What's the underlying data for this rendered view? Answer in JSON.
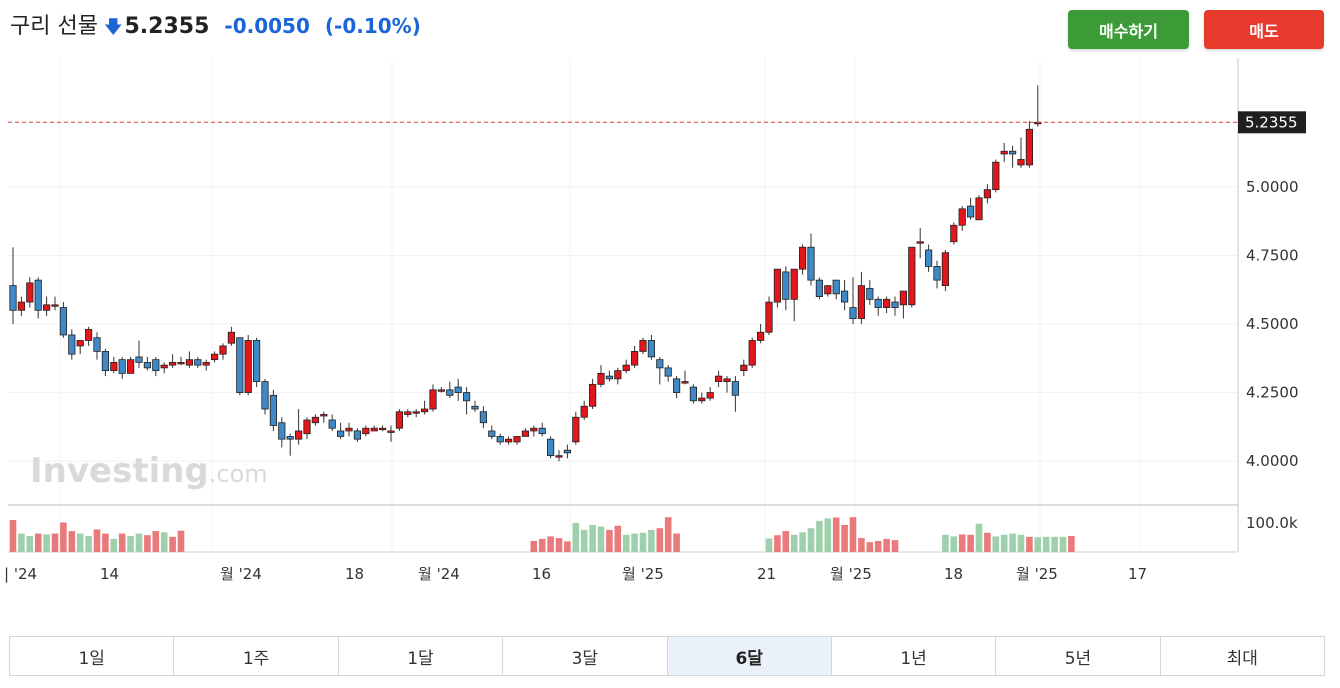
{
  "header": {
    "name": "구리 선물",
    "arrow": "🡇",
    "price": "5.2355",
    "change": "-0.0050",
    "change_pct": "(-0.10%)"
  },
  "actions": {
    "buy_label": "매수하기",
    "sell_label": "매도"
  },
  "chart_data": {
    "type": "candlestick",
    "last_price_label": "5.2355",
    "y_ticks": [
      "4.0000",
      "4.2500",
      "4.5000",
      "4.7500",
      "5.0000"
    ],
    "ylim": [
      3.84,
      5.47
    ],
    "volume_label": "100.0k",
    "x_tick_labels": [
      "| '24",
      "14",
      "월 '24",
      "18",
      "월 '24",
      "16",
      "월 '25",
      "21",
      "월 '25",
      "18",
      "월 '25",
      "17"
    ],
    "watermark": "Investing",
    "watermark_suffix": ".com",
    "colors": {
      "up": "#e3161c",
      "down": "#3f89c6",
      "vol_up": "#e87a7c",
      "vol_down": "#9fd0ac",
      "last_line": "#d83b3b"
    },
    "candles": [
      [
        4.64,
        4.78,
        4.5,
        4.55
      ],
      [
        4.55,
        4.6,
        4.53,
        4.58
      ],
      [
        4.58,
        4.67,
        4.56,
        4.65
      ],
      [
        4.66,
        4.67,
        4.52,
        4.55
      ],
      [
        4.55,
        4.6,
        4.53,
        4.57
      ],
      [
        4.57,
        4.6,
        4.55,
        4.57
      ],
      [
        4.56,
        4.58,
        4.45,
        4.46
      ],
      [
        4.46,
        4.48,
        4.37,
        4.39
      ],
      [
        4.42,
        4.44,
        4.39,
        4.44
      ],
      [
        4.44,
        4.49,
        4.42,
        4.48
      ],
      [
        4.45,
        4.47,
        4.37,
        4.4
      ],
      [
        4.4,
        4.41,
        4.31,
        4.33
      ],
      [
        4.33,
        4.38,
        4.32,
        4.36
      ],
      [
        4.37,
        4.38,
        4.3,
        4.32
      ],
      [
        4.32,
        4.38,
        4.32,
        4.37
      ],
      [
        4.38,
        4.44,
        4.34,
        4.36
      ],
      [
        4.36,
        4.38,
        4.33,
        4.34
      ],
      [
        4.37,
        4.38,
        4.31,
        4.33
      ],
      [
        4.34,
        4.36,
        4.32,
        4.35
      ],
      [
        4.35,
        4.39,
        4.34,
        4.36
      ],
      [
        4.36,
        4.38,
        4.35,
        4.36
      ],
      [
        4.35,
        4.4,
        4.34,
        4.37
      ],
      [
        4.37,
        4.38,
        4.34,
        4.35
      ],
      [
        4.35,
        4.37,
        4.33,
        4.36
      ],
      [
        4.37,
        4.4,
        4.36,
        4.39
      ],
      [
        4.39,
        4.43,
        4.37,
        4.42
      ],
      [
        4.43,
        4.49,
        4.42,
        4.47
      ],
      [
        4.45,
        4.45,
        4.24,
        4.25
      ],
      [
        4.25,
        4.46,
        4.24,
        4.44
      ],
      [
        4.44,
        4.45,
        4.27,
        4.29
      ],
      [
        4.29,
        4.3,
        4.17,
        4.19
      ],
      [
        4.24,
        4.26,
        4.11,
        4.13
      ],
      [
        4.14,
        4.16,
        4.05,
        4.08
      ],
      [
        4.09,
        4.1,
        4.02,
        4.08
      ],
      [
        4.08,
        4.19,
        4.06,
        4.11
      ],
      [
        4.1,
        4.16,
        4.08,
        4.15
      ],
      [
        4.14,
        4.17,
        4.13,
        4.16
      ],
      [
        4.17,
        4.18,
        4.14,
        4.17
      ],
      [
        4.15,
        4.17,
        4.11,
        4.12
      ],
      [
        4.11,
        4.14,
        4.08,
        4.09
      ],
      [
        4.11,
        4.14,
        4.09,
        4.12
      ],
      [
        4.11,
        4.12,
        4.07,
        4.08
      ],
      [
        4.1,
        4.13,
        4.09,
        4.12
      ],
      [
        4.11,
        4.13,
        4.11,
        4.12
      ],
      [
        4.12,
        4.13,
        4.11,
        4.12
      ],
      [
        4.11,
        4.13,
        4.07,
        4.11
      ],
      [
        4.12,
        4.19,
        4.11,
        4.18
      ],
      [
        4.17,
        4.19,
        4.16,
        4.18
      ],
      [
        4.18,
        4.19,
        4.16,
        4.18
      ],
      [
        4.18,
        4.22,
        4.17,
        4.19
      ],
      [
        4.19,
        4.28,
        4.18,
        4.26
      ],
      [
        4.26,
        4.27,
        4.25,
        4.26
      ],
      [
        4.26,
        4.29,
        4.23,
        4.24
      ],
      [
        4.27,
        4.3,
        4.22,
        4.25
      ],
      [
        4.25,
        4.27,
        4.17,
        4.22
      ],
      [
        4.2,
        4.22,
        4.18,
        4.19
      ],
      [
        4.18,
        4.2,
        4.12,
        4.14
      ],
      [
        4.11,
        4.13,
        4.08,
        4.09
      ],
      [
        4.09,
        4.1,
        4.06,
        4.07
      ],
      [
        4.07,
        4.09,
        4.06,
        4.08
      ],
      [
        4.07,
        4.09,
        4.06,
        4.09
      ],
      [
        4.09,
        4.12,
        4.09,
        4.11
      ],
      [
        4.11,
        4.13,
        4.09,
        4.12
      ],
      [
        4.12,
        4.14,
        4.09,
        4.1
      ],
      [
        4.08,
        4.09,
        4.01,
        4.02
      ],
      [
        4.02,
        4.04,
        4.0,
        4.02
      ],
      [
        4.04,
        4.06,
        4.01,
        4.03
      ],
      [
        4.07,
        4.18,
        4.06,
        4.16
      ],
      [
        4.16,
        4.22,
        4.15,
        4.2
      ],
      [
        4.2,
        4.3,
        4.19,
        4.28
      ],
      [
        4.28,
        4.35,
        4.27,
        4.32
      ],
      [
        4.31,
        4.33,
        4.29,
        4.3
      ],
      [
        4.3,
        4.34,
        4.28,
        4.33
      ],
      [
        4.33,
        4.37,
        4.32,
        4.35
      ],
      [
        4.35,
        4.42,
        4.34,
        4.4
      ],
      [
        4.4,
        4.45,
        4.39,
        4.44
      ],
      [
        4.44,
        4.46,
        4.37,
        4.38
      ],
      [
        4.37,
        4.38,
        4.28,
        4.34
      ],
      [
        4.34,
        4.35,
        4.29,
        4.31
      ],
      [
        4.3,
        4.31,
        4.23,
        4.25
      ],
      [
        4.29,
        4.33,
        4.28,
        4.29
      ],
      [
        4.27,
        4.28,
        4.21,
        4.22
      ],
      [
        4.22,
        4.25,
        4.21,
        4.23
      ],
      [
        4.23,
        4.27,
        4.22,
        4.25
      ],
      [
        4.29,
        4.33,
        4.27,
        4.31
      ],
      [
        4.29,
        4.31,
        4.25,
        4.3
      ],
      [
        4.29,
        4.31,
        4.18,
        4.24
      ],
      [
        4.33,
        4.37,
        4.31,
        4.35
      ],
      [
        4.35,
        4.45,
        4.34,
        4.44
      ],
      [
        4.44,
        4.5,
        4.43,
        4.47
      ],
      [
        4.47,
        4.6,
        4.46,
        4.58
      ],
      [
        4.58,
        4.7,
        4.56,
        4.7
      ],
      [
        4.69,
        4.71,
        4.55,
        4.59
      ],
      [
        4.59,
        4.7,
        4.51,
        4.7
      ],
      [
        4.7,
        4.79,
        4.68,
        4.78
      ],
      [
        4.78,
        4.83,
        4.64,
        4.66
      ],
      [
        4.66,
        4.67,
        4.59,
        4.6
      ],
      [
        4.61,
        4.64,
        4.6,
        4.64
      ],
      [
        4.66,
        4.66,
        4.59,
        4.61
      ],
      [
        4.62,
        4.66,
        4.55,
        4.58
      ],
      [
        4.56,
        4.67,
        4.5,
        4.52
      ],
      [
        4.52,
        4.69,
        4.5,
        4.64
      ],
      [
        4.63,
        4.66,
        4.57,
        4.59
      ],
      [
        4.59,
        4.6,
        4.53,
        4.56
      ],
      [
        4.56,
        4.6,
        4.54,
        4.59
      ],
      [
        4.58,
        4.6,
        4.53,
        4.56
      ],
      [
        4.57,
        4.62,
        4.52,
        4.62
      ],
      [
        4.57,
        4.78,
        4.56,
        4.78
      ],
      [
        4.8,
        4.85,
        4.74,
        4.8
      ],
      [
        4.77,
        4.79,
        4.69,
        4.71
      ],
      [
        4.71,
        4.73,
        4.63,
        4.66
      ],
      [
        4.64,
        4.77,
        4.62,
        4.76
      ],
      [
        4.8,
        4.87,
        4.79,
        4.86
      ],
      [
        4.86,
        4.93,
        4.84,
        4.92
      ],
      [
        4.93,
        4.96,
        4.88,
        4.89
      ],
      [
        4.88,
        4.97,
        4.88,
        4.96
      ],
      [
        4.96,
        5.01,
        4.94,
        4.99
      ],
      [
        4.99,
        5.1,
        4.98,
        5.09
      ],
      [
        5.12,
        5.16,
        5.09,
        5.13
      ],
      [
        5.13,
        5.15,
        5.07,
        5.12
      ],
      [
        5.08,
        5.18,
        5.07,
        5.1
      ],
      [
        5.08,
        5.24,
        5.07,
        5.21
      ],
      [
        5.2355,
        5.37,
        5.22,
        5.2355
      ]
    ],
    "volume": [
      [
        0.78,
        1
      ],
      [
        0.45,
        0
      ],
      [
        0.39,
        0
      ],
      [
        0.45,
        1
      ],
      [
        0.43,
        0
      ],
      [
        0.45,
        1
      ],
      [
        0.72,
        1
      ],
      [
        0.51,
        1
      ],
      [
        0.45,
        0
      ],
      [
        0.39,
        0
      ],
      [
        0.55,
        1
      ],
      [
        0.45,
        1
      ],
      [
        0.32,
        0
      ],
      [
        0.45,
        1
      ],
      [
        0.39,
        0
      ],
      [
        0.45,
        0
      ],
      [
        0.41,
        1
      ],
      [
        0.51,
        1
      ],
      [
        0.48,
        0
      ],
      [
        0.37,
        1
      ],
      [
        0.52,
        1
      ],
      [
        0,
        0
      ],
      [
        0,
        0
      ],
      [
        0,
        0
      ],
      [
        0,
        0
      ],
      [
        0,
        0
      ],
      [
        0,
        0
      ],
      [
        0,
        0
      ],
      [
        0,
        0
      ],
      [
        0,
        0
      ],
      [
        0,
        0
      ],
      [
        0,
        0
      ],
      [
        0,
        0
      ],
      [
        0,
        0
      ],
      [
        0,
        0
      ],
      [
        0,
        0
      ],
      [
        0,
        0
      ],
      [
        0,
        0
      ],
      [
        0,
        0
      ],
      [
        0,
        0
      ],
      [
        0,
        0
      ],
      [
        0,
        0
      ],
      [
        0,
        0
      ],
      [
        0,
        0
      ],
      [
        0,
        0
      ],
      [
        0,
        0
      ],
      [
        0,
        0
      ],
      [
        0,
        0
      ],
      [
        0,
        0
      ],
      [
        0,
        0
      ],
      [
        0,
        0
      ],
      [
        0,
        0
      ],
      [
        0,
        0
      ],
      [
        0,
        0
      ],
      [
        0,
        0
      ],
      [
        0,
        0
      ],
      [
        0,
        0
      ],
      [
        0,
        0
      ],
      [
        0,
        0
      ],
      [
        0,
        0
      ],
      [
        0,
        0
      ],
      [
        0,
        0
      ],
      [
        0.27,
        1
      ],
      [
        0.32,
        1
      ],
      [
        0.38,
        1
      ],
      [
        0.34,
        1
      ],
      [
        0.26,
        1
      ],
      [
        0.71,
        0
      ],
      [
        0.54,
        0
      ],
      [
        0.66,
        0
      ],
      [
        0.62,
        0
      ],
      [
        0.54,
        1
      ],
      [
        0.64,
        1
      ],
      [
        0.42,
        0
      ],
      [
        0.45,
        0
      ],
      [
        0.47,
        0
      ],
      [
        0.54,
        0
      ],
      [
        0.58,
        1
      ],
      [
        0.85,
        1
      ],
      [
        0.45,
        1
      ],
      [
        0,
        0
      ],
      [
        0,
        0
      ],
      [
        0,
        0
      ],
      [
        0,
        0
      ],
      [
        0,
        0
      ],
      [
        0,
        0
      ],
      [
        0,
        0
      ],
      [
        0,
        0
      ],
      [
        0,
        0
      ],
      [
        0,
        0
      ],
      [
        0.33,
        0
      ],
      [
        0.41,
        1
      ],
      [
        0.51,
        1
      ],
      [
        0.42,
        0
      ],
      [
        0.48,
        0
      ],
      [
        0.58,
        0
      ],
      [
        0.76,
        0
      ],
      [
        0.82,
        0
      ],
      [
        0.84,
        1
      ],
      [
        0.66,
        1
      ],
      [
        0.85,
        1
      ],
      [
        0.34,
        1
      ],
      [
        0.24,
        1
      ],
      [
        0.27,
        1
      ],
      [
        0.32,
        1
      ],
      [
        0.29,
        1
      ],
      [
        0,
        0
      ],
      [
        0,
        0
      ],
      [
        0,
        0
      ],
      [
        0,
        0
      ],
      [
        0,
        0
      ],
      [
        0.42,
        0
      ],
      [
        0.38,
        0
      ],
      [
        0.43,
        1
      ],
      [
        0.42,
        1
      ],
      [
        0.69,
        0
      ],
      [
        0.47,
        1
      ],
      [
        0.38,
        0
      ],
      [
        0.42,
        0
      ],
      [
        0.45,
        0
      ],
      [
        0.42,
        0
      ],
      [
        0.37,
        1
      ],
      [
        0.36,
        0
      ],
      [
        0.37,
        0
      ],
      [
        0.37,
        0
      ],
      [
        0.37,
        0
      ],
      [
        0.39,
        1
      ]
    ]
  },
  "tabs": [
    {
      "label": "1일",
      "active": false
    },
    {
      "label": "1주",
      "active": false
    },
    {
      "label": "1달",
      "active": false
    },
    {
      "label": "3달",
      "active": false
    },
    {
      "label": "6달",
      "active": true
    },
    {
      "label": "1년",
      "active": false
    },
    {
      "label": "5년",
      "active": false
    },
    {
      "label": "최대",
      "active": false
    }
  ]
}
